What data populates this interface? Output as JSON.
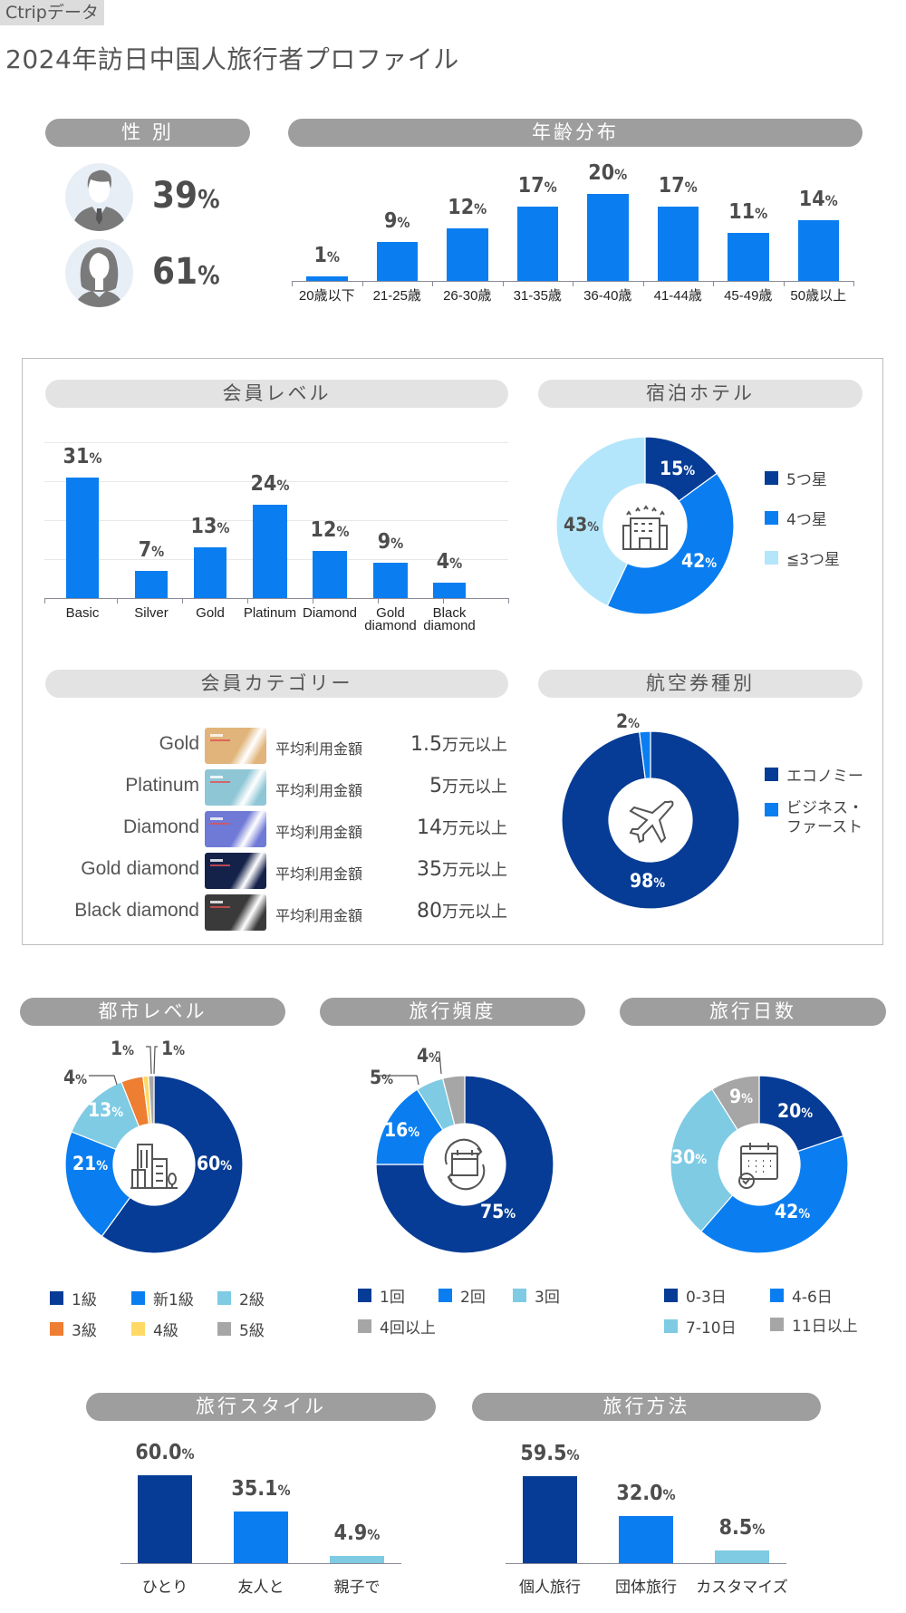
{
  "header": {
    "source_tag": "Ctripデータ",
    "title": "2024年訪日中国人旅行者プロファイル"
  },
  "colors": {
    "navy": "#063c95",
    "blue": "#0a7ef0",
    "light_blue": "#7ecbe3",
    "pale_blue": "#b3e6fa",
    "orange": "#ee7e32",
    "yellow": "#ffd966",
    "gray": "#a6a6a6",
    "pill_dark": "#9e9e9e",
    "pill_light": "#e3e3e3"
  },
  "gender": {
    "title": "性 別",
    "male": {
      "icon": "male-avatar-icon",
      "value": "39",
      "unit": "%"
    },
    "female": {
      "icon": "female-avatar-icon",
      "value": "61",
      "unit": "%"
    }
  },
  "age": {
    "title": "年齢分布"
  },
  "member_level": {
    "title": "会員レベル"
  },
  "hotel": {
    "title": "宿泊ホテル",
    "icon": "hotel-icon"
  },
  "member_category": {
    "title": "会員カテゴリー",
    "rows": [
      {
        "name": "Gold",
        "label": "平均利用金額",
        "amount": "1.5",
        "unit": "万元以上",
        "card_color": "#e0b47a"
      },
      {
        "name": "Platinum",
        "label": "平均利用金額",
        "amount": "5",
        "unit": "万元以上",
        "card_color": "#8fc6d6"
      },
      {
        "name": "Diamond",
        "label": "平均利用金額",
        "amount": "14",
        "unit": "万元以上",
        "card_color": "#6f79d6"
      },
      {
        "name": "Gold diamond",
        "label": "平均利用金額",
        "amount": "35",
        "unit": "万元以上",
        "card_color": "#14224a"
      },
      {
        "name": "Black diamond",
        "label": "平均利用金額",
        "amount": "80",
        "unit": "万元以上",
        "card_color": "#3a3a3a"
      }
    ]
  },
  "flight": {
    "title": "航空券種別",
    "icon": "airplane-icon"
  },
  "city": {
    "title": "都市レベル",
    "icon": "city-buildings-icon"
  },
  "frequency": {
    "title": "旅行頻度",
    "icon": "calendar-repeat-icon"
  },
  "days": {
    "title": "旅行日数",
    "icon": "calendar-check-icon"
  },
  "style": {
    "title": "旅行スタイル"
  },
  "method": {
    "title": "旅行方法"
  },
  "chart_data": [
    {
      "id": "gender",
      "type": "table",
      "title": "性 別",
      "categories": [
        "男性",
        "女性"
      ],
      "values": [
        39,
        61
      ],
      "unit": "%"
    },
    {
      "id": "age",
      "type": "bar",
      "title": "年齢分布",
      "categories": [
        "20歳以下",
        "21-25歳",
        "26-30歳",
        "31-35歳",
        "36-40歳",
        "41-44歳",
        "45-49歳",
        "50歳以上"
      ],
      "values": [
        1,
        9,
        12,
        17,
        20,
        17,
        11,
        14
      ],
      "unit": "%",
      "xlabel": "",
      "ylabel": "",
      "grid": false
    },
    {
      "id": "member_level",
      "type": "bar",
      "title": "会員レベル",
      "categories": [
        "Basic",
        "Silver",
        "Gold",
        "Platinum",
        "Diamond",
        "Gold diamond",
        "Black diamond"
      ],
      "values": [
        31,
        7,
        13,
        24,
        12,
        9,
        4
      ],
      "unit": "%",
      "ylim": [
        0,
        40
      ],
      "grid": true
    },
    {
      "id": "hotel",
      "type": "pie",
      "title": "宿泊ホテル",
      "categories": [
        "5つ星",
        "4つ星",
        "≦3つ星"
      ],
      "values": [
        15,
        42,
        43
      ],
      "colors": [
        "#063c95",
        "#0a7ef0",
        "#b3e6fa"
      ],
      "unit": "%",
      "legend_position": "right"
    },
    {
      "id": "flight",
      "type": "pie",
      "title": "航空券種別",
      "categories": [
        "エコノミー",
        "ビジネス・ファースト"
      ],
      "values": [
        98,
        2
      ],
      "colors": [
        "#063c95",
        "#0a7ef0"
      ],
      "unit": "%",
      "legend_position": "right"
    },
    {
      "id": "city",
      "type": "pie",
      "title": "都市レベル",
      "categories": [
        "1級",
        "新1級",
        "2級",
        "3級",
        "4級",
        "5級"
      ],
      "values": [
        60,
        21,
        13,
        4,
        1,
        1
      ],
      "colors": [
        "#063c95",
        "#0a7ef0",
        "#7ecbe3",
        "#ee7e32",
        "#ffd966",
        "#a6a6a6"
      ],
      "unit": "%",
      "legend_position": "bottom"
    },
    {
      "id": "frequency",
      "type": "pie",
      "title": "旅行頻度",
      "categories": [
        "1回",
        "2回",
        "3回",
        "4回以上"
      ],
      "values": [
        75,
        16,
        5,
        4
      ],
      "colors": [
        "#063c95",
        "#0a7ef0",
        "#7ecbe3",
        "#a6a6a6"
      ],
      "unit": "%",
      "legend_position": "bottom"
    },
    {
      "id": "days",
      "type": "pie",
      "title": "旅行日数",
      "categories": [
        "0-3日",
        "4-6日",
        "7-10日",
        "11日以上"
      ],
      "values": [
        20,
        42,
        30,
        9
      ],
      "colors": [
        "#063c95",
        "#0a7ef0",
        "#7ecbe3",
        "#a6a6a6"
      ],
      "unit": "%",
      "legend_position": "bottom"
    },
    {
      "id": "style",
      "type": "bar",
      "title": "旅行スタイル",
      "categories": [
        "ひとり",
        "友人と",
        "親子で"
      ],
      "values": [
        60.0,
        35.1,
        4.9
      ],
      "labels": [
        "60.0",
        "35.1",
        "4.9"
      ],
      "colors": [
        "#063c95",
        "#0a7ef0",
        "#7ecbe3"
      ],
      "unit": "%"
    },
    {
      "id": "method",
      "type": "bar",
      "title": "旅行方法",
      "categories": [
        "個人旅行",
        "団体旅行",
        "カスタマイズ"
      ],
      "values": [
        59.5,
        32.0,
        8.5
      ],
      "labels": [
        "59.5",
        "32.0",
        "8.5"
      ],
      "colors": [
        "#063c95",
        "#0a7ef0",
        "#7ecbe3"
      ],
      "unit": "%"
    }
  ]
}
